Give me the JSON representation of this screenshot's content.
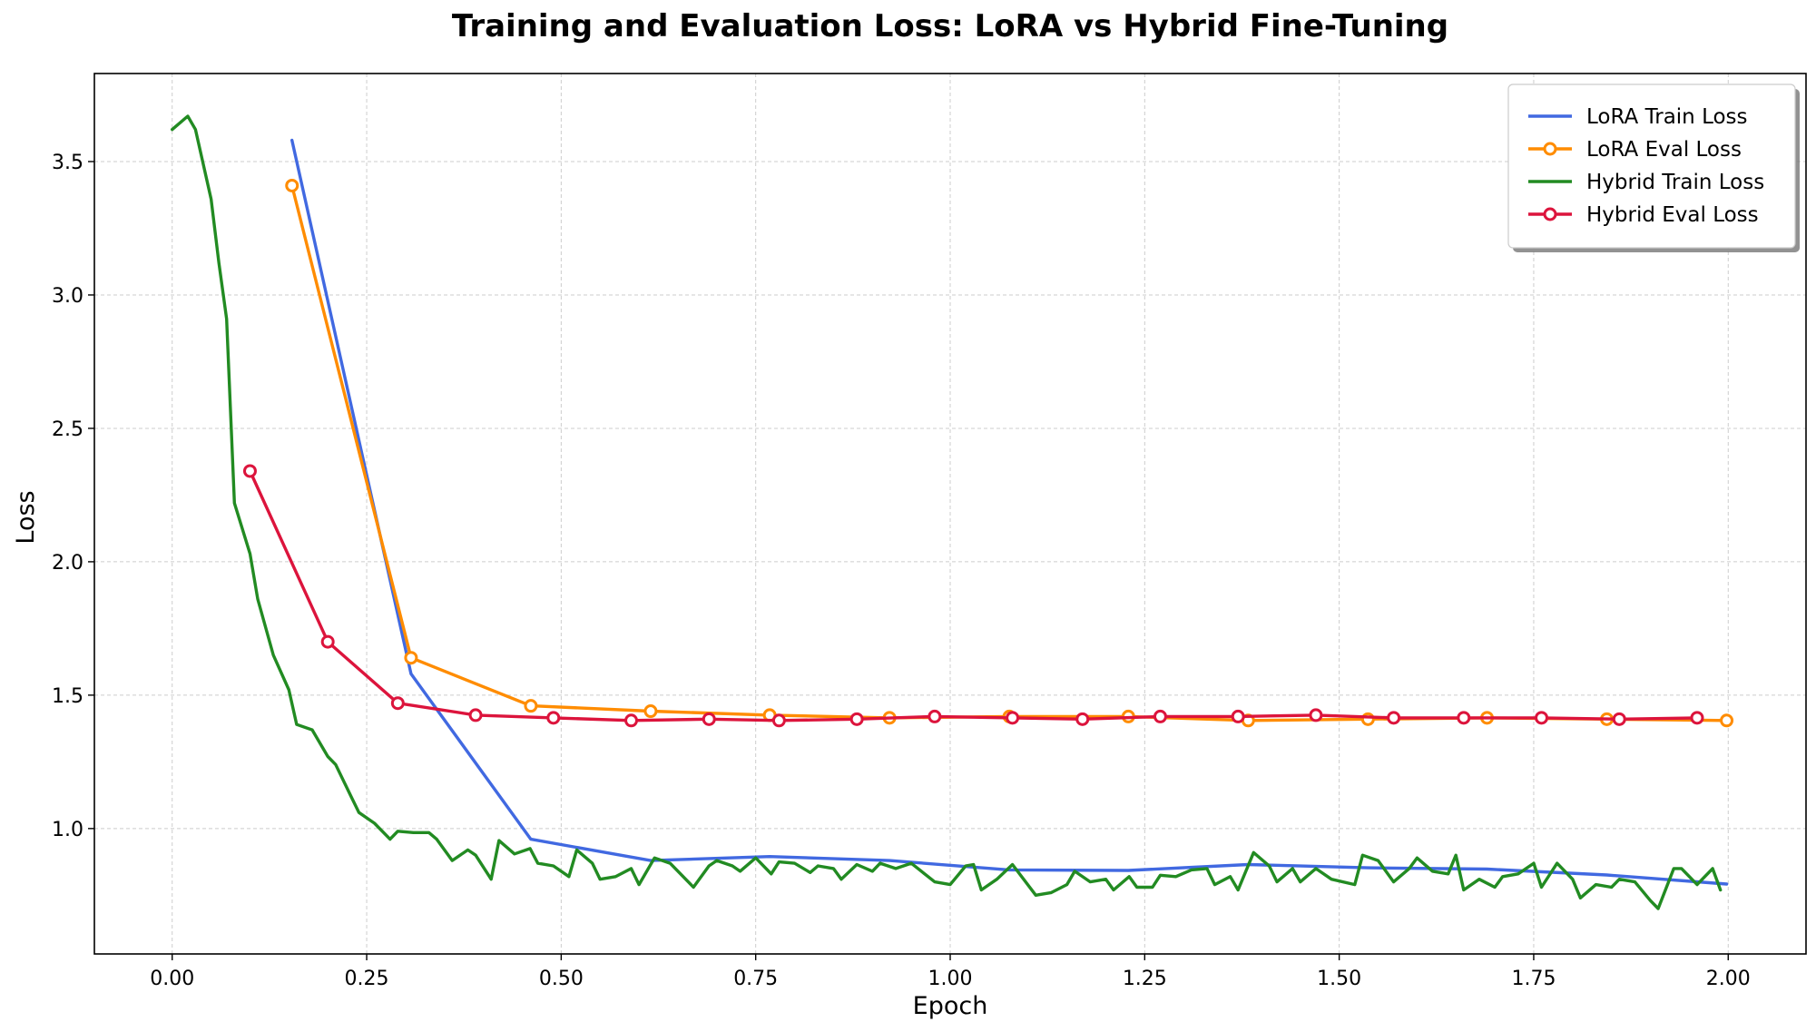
{
  "chart_data": {
    "type": "line",
    "title": "Training and Evaluation Loss: LoRA vs Hybrid Fine-Tuning",
    "xlabel": "Epoch",
    "ylabel": "Loss",
    "xlim": [
      -0.1,
      2.1
    ],
    "ylim": [
      0.53,
      3.83
    ],
    "xticks": [
      "0.00",
      "0.25",
      "0.50",
      "0.75",
      "1.00",
      "1.25",
      "1.50",
      "1.75",
      "2.00"
    ],
    "yticks": [
      "1.0",
      "1.5",
      "2.0",
      "2.5",
      "3.0",
      "3.5"
    ],
    "grid": true,
    "legend_position": "top-right",
    "series": [
      {
        "name": "LoRA Train Loss",
        "color": "#4169e1",
        "markers": false,
        "x": [
          0.154,
          0.307,
          0.461,
          0.615,
          0.768,
          0.922,
          1.076,
          1.229,
          1.383,
          1.537,
          1.69,
          1.844,
          1.998
        ],
        "y": [
          3.58,
          1.58,
          0.96,
          0.88,
          0.895,
          0.88,
          0.845,
          0.843,
          0.865,
          0.853,
          0.848,
          0.826,
          0.792
        ]
      },
      {
        "name": "LoRA Eval Loss",
        "color": "#ff8c00",
        "markers": true,
        "x": [
          0.154,
          0.307,
          0.461,
          0.615,
          0.768,
          0.922,
          1.076,
          1.229,
          1.383,
          1.537,
          1.69,
          1.844,
          1.998
        ],
        "y": [
          3.41,
          1.64,
          1.46,
          1.44,
          1.425,
          1.415,
          1.42,
          1.42,
          1.405,
          1.41,
          1.415,
          1.41,
          1.405
        ]
      },
      {
        "name": "Hybrid Train Loss",
        "color": "#228b22",
        "markers": false,
        "x": [
          0.0,
          0.02,
          0.03,
          0.05,
          0.06,
          0.07,
          0.08,
          0.1,
          0.11,
          0.13,
          0.15,
          0.16,
          0.18,
          0.2,
          0.21,
          0.23,
          0.24,
          0.26,
          0.28,
          0.29,
          0.31,
          0.33,
          0.34,
          0.36,
          0.38,
          0.39,
          0.41,
          0.42,
          0.44,
          0.46,
          0.47,
          0.49,
          0.51,
          0.52,
          0.54,
          0.55,
          0.57,
          0.59,
          0.6,
          0.62,
          0.64,
          0.67,
          0.69,
          0.7,
          0.72,
          0.73,
          0.75,
          0.77,
          0.78,
          0.8,
          0.82,
          0.83,
          0.85,
          0.86,
          0.88,
          0.9,
          0.91,
          0.93,
          0.95,
          0.98,
          1.0,
          1.02,
          1.03,
          1.04,
          1.06,
          1.08,
          1.11,
          1.13,
          1.15,
          1.16,
          1.18,
          1.2,
          1.21,
          1.23,
          1.24,
          1.26,
          1.27,
          1.29,
          1.31,
          1.33,
          1.34,
          1.36,
          1.37,
          1.39,
          1.41,
          1.42,
          1.44,
          1.45,
          1.47,
          1.49,
          1.52,
          1.53,
          1.55,
          1.57,
          1.59,
          1.6,
          1.62,
          1.64,
          1.65,
          1.66,
          1.68,
          1.7,
          1.71,
          1.73,
          1.75,
          1.76,
          1.78,
          1.8,
          1.81,
          1.83,
          1.85,
          1.86,
          1.88,
          1.9,
          1.91,
          1.93,
          1.94,
          1.96,
          1.98,
          1.99
        ],
        "y": [
          3.62,
          3.67,
          3.62,
          3.36,
          3.12,
          2.91,
          2.22,
          2.03,
          1.86,
          1.65,
          1.52,
          1.39,
          1.37,
          1.27,
          1.24,
          1.12,
          1.06,
          1.02,
          0.96,
          0.99,
          0.985,
          0.985,
          0.96,
          0.88,
          0.92,
          0.9,
          0.81,
          0.955,
          0.905,
          0.925,
          0.87,
          0.86,
          0.82,
          0.92,
          0.87,
          0.81,
          0.82,
          0.85,
          0.79,
          0.89,
          0.87,
          0.78,
          0.86,
          0.88,
          0.86,
          0.84,
          0.89,
          0.83,
          0.875,
          0.87,
          0.835,
          0.86,
          0.85,
          0.81,
          0.865,
          0.84,
          0.87,
          0.85,
          0.87,
          0.8,
          0.79,
          0.86,
          0.865,
          0.77,
          0.81,
          0.865,
          0.75,
          0.76,
          0.79,
          0.84,
          0.8,
          0.81,
          0.77,
          0.82,
          0.78,
          0.78,
          0.825,
          0.82,
          0.845,
          0.85,
          0.79,
          0.82,
          0.77,
          0.91,
          0.86,
          0.8,
          0.85,
          0.8,
          0.85,
          0.81,
          0.79,
          0.9,
          0.88,
          0.8,
          0.85,
          0.89,
          0.84,
          0.83,
          0.9,
          0.77,
          0.81,
          0.78,
          0.82,
          0.83,
          0.87,
          0.78,
          0.87,
          0.81,
          0.74,
          0.79,
          0.78,
          0.81,
          0.8,
          0.73,
          0.7,
          0.85,
          0.85,
          0.79,
          0.85,
          0.77
        ]
      },
      {
        "name": "Hybrid Eval Loss",
        "color": "#dc143c",
        "markers": true,
        "x": [
          0.1,
          0.2,
          0.29,
          0.39,
          0.49,
          0.59,
          0.69,
          0.78,
          0.88,
          0.98,
          1.08,
          1.17,
          1.27,
          1.37,
          1.47,
          1.57,
          1.66,
          1.76,
          1.86,
          1.96
        ],
        "y": [
          2.34,
          1.7,
          1.47,
          1.425,
          1.415,
          1.405,
          1.41,
          1.405,
          1.41,
          1.42,
          1.415,
          1.41,
          1.42,
          1.42,
          1.425,
          1.415,
          1.415,
          1.415,
          1.41,
          1.415
        ]
      }
    ]
  }
}
